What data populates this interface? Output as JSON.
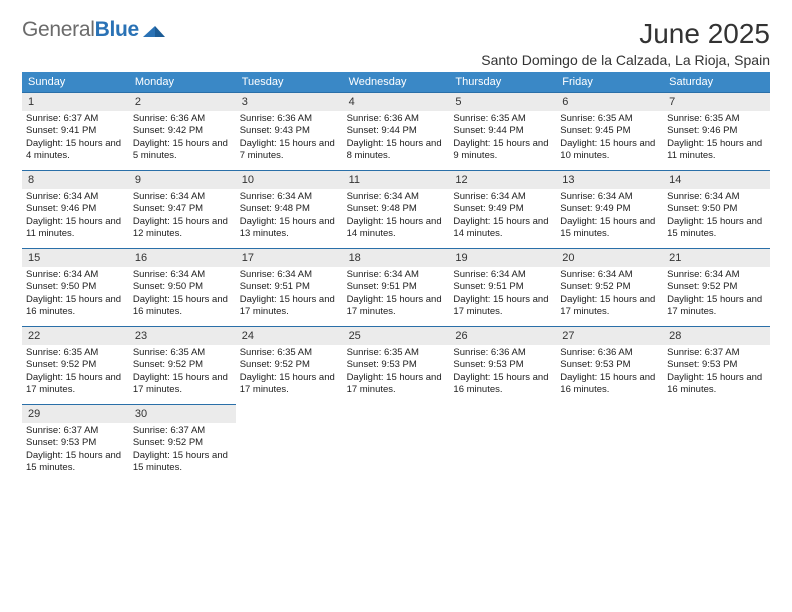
{
  "brand": {
    "part1": "General",
    "part2": "Blue"
  },
  "title": "June 2025",
  "location": "Santo Domingo de la Calzada, La Rioja, Spain",
  "colors": {
    "header_bg": "#3a88c6",
    "header_text": "#ffffff",
    "cell_border": "#2a6fa8",
    "datenum_bg": "#ebebeb",
    "text": "#212121",
    "logo_gray": "#6b6b6b",
    "logo_blue": "#2a72b5",
    "background": "#ffffff"
  },
  "weekdays": [
    "Sunday",
    "Monday",
    "Tuesday",
    "Wednesday",
    "Thursday",
    "Friday",
    "Saturday"
  ],
  "days": [
    {
      "n": 1,
      "sr": "6:37 AM",
      "ss": "9:41 PM",
      "dl": "15 hours and 4 minutes."
    },
    {
      "n": 2,
      "sr": "6:36 AM",
      "ss": "9:42 PM",
      "dl": "15 hours and 5 minutes."
    },
    {
      "n": 3,
      "sr": "6:36 AM",
      "ss": "9:43 PM",
      "dl": "15 hours and 7 minutes."
    },
    {
      "n": 4,
      "sr": "6:36 AM",
      "ss": "9:44 PM",
      "dl": "15 hours and 8 minutes."
    },
    {
      "n": 5,
      "sr": "6:35 AM",
      "ss": "9:44 PM",
      "dl": "15 hours and 9 minutes."
    },
    {
      "n": 6,
      "sr": "6:35 AM",
      "ss": "9:45 PM",
      "dl": "15 hours and 10 minutes."
    },
    {
      "n": 7,
      "sr": "6:35 AM",
      "ss": "9:46 PM",
      "dl": "15 hours and 11 minutes."
    },
    {
      "n": 8,
      "sr": "6:34 AM",
      "ss": "9:46 PM",
      "dl": "15 hours and 11 minutes."
    },
    {
      "n": 9,
      "sr": "6:34 AM",
      "ss": "9:47 PM",
      "dl": "15 hours and 12 minutes."
    },
    {
      "n": 10,
      "sr": "6:34 AM",
      "ss": "9:48 PM",
      "dl": "15 hours and 13 minutes."
    },
    {
      "n": 11,
      "sr": "6:34 AM",
      "ss": "9:48 PM",
      "dl": "15 hours and 14 minutes."
    },
    {
      "n": 12,
      "sr": "6:34 AM",
      "ss": "9:49 PM",
      "dl": "15 hours and 14 minutes."
    },
    {
      "n": 13,
      "sr": "6:34 AM",
      "ss": "9:49 PM",
      "dl": "15 hours and 15 minutes."
    },
    {
      "n": 14,
      "sr": "6:34 AM",
      "ss": "9:50 PM",
      "dl": "15 hours and 15 minutes."
    },
    {
      "n": 15,
      "sr": "6:34 AM",
      "ss": "9:50 PM",
      "dl": "15 hours and 16 minutes."
    },
    {
      "n": 16,
      "sr": "6:34 AM",
      "ss": "9:50 PM",
      "dl": "15 hours and 16 minutes."
    },
    {
      "n": 17,
      "sr": "6:34 AM",
      "ss": "9:51 PM",
      "dl": "15 hours and 17 minutes."
    },
    {
      "n": 18,
      "sr": "6:34 AM",
      "ss": "9:51 PM",
      "dl": "15 hours and 17 minutes."
    },
    {
      "n": 19,
      "sr": "6:34 AM",
      "ss": "9:51 PM",
      "dl": "15 hours and 17 minutes."
    },
    {
      "n": 20,
      "sr": "6:34 AM",
      "ss": "9:52 PM",
      "dl": "15 hours and 17 minutes."
    },
    {
      "n": 21,
      "sr": "6:34 AM",
      "ss": "9:52 PM",
      "dl": "15 hours and 17 minutes."
    },
    {
      "n": 22,
      "sr": "6:35 AM",
      "ss": "9:52 PM",
      "dl": "15 hours and 17 minutes."
    },
    {
      "n": 23,
      "sr": "6:35 AM",
      "ss": "9:52 PM",
      "dl": "15 hours and 17 minutes."
    },
    {
      "n": 24,
      "sr": "6:35 AM",
      "ss": "9:52 PM",
      "dl": "15 hours and 17 minutes."
    },
    {
      "n": 25,
      "sr": "6:35 AM",
      "ss": "9:53 PM",
      "dl": "15 hours and 17 minutes."
    },
    {
      "n": 26,
      "sr": "6:36 AM",
      "ss": "9:53 PM",
      "dl": "15 hours and 16 minutes."
    },
    {
      "n": 27,
      "sr": "6:36 AM",
      "ss": "9:53 PM",
      "dl": "15 hours and 16 minutes."
    },
    {
      "n": 28,
      "sr": "6:37 AM",
      "ss": "9:53 PM",
      "dl": "15 hours and 16 minutes."
    },
    {
      "n": 29,
      "sr": "6:37 AM",
      "ss": "9:53 PM",
      "dl": "15 hours and 15 minutes."
    },
    {
      "n": 30,
      "sr": "6:37 AM",
      "ss": "9:52 PM",
      "dl": "15 hours and 15 minutes."
    }
  ],
  "labels": {
    "sunrise": "Sunrise:",
    "sunset": "Sunset:",
    "daylight": "Daylight:"
  },
  "layout": {
    "first_weekday_offset": 0,
    "total_cells": 35
  }
}
